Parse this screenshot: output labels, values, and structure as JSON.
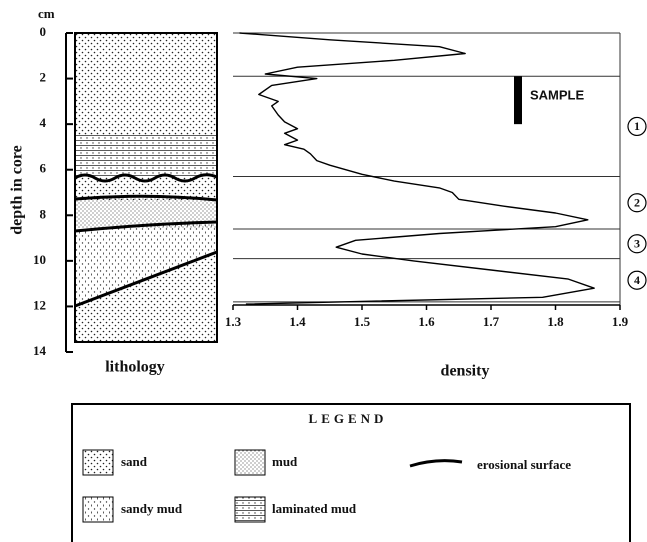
{
  "chart_data": {
    "type": "line",
    "ylabel": "depth in core",
    "yunit": "cm",
    "xlabel": "density",
    "column_label": "lithology",
    "ylim": [
      0,
      14
    ],
    "yticks": [
      0,
      2,
      4,
      6,
      8,
      10,
      12,
      14
    ],
    "xlim": [
      1.3,
      1.9
    ],
    "xticks": [
      1.3,
      1.4,
      1.5,
      1.6,
      1.7,
      1.8,
      1.9
    ],
    "depth": [
      0,
      0.3,
      0.6,
      0.9,
      1.2,
      1.5,
      1.8,
      2.0,
      2.3,
      2.7,
      3.0,
      3.2,
      3.6,
      3.9,
      4.2,
      4.4,
      4.7,
      4.9,
      5.1,
      5.3,
      5.6,
      5.8,
      6.2,
      6.5,
      6.8,
      7.0,
      7.3,
      7.6,
      7.9,
      8.2,
      8.5,
      8.8,
      9.1,
      9.4,
      9.7,
      10.0,
      10.4,
      10.8,
      11.2,
      11.6,
      11.9
    ],
    "values": [
      1.31,
      1.45,
      1.62,
      1.66,
      1.55,
      1.4,
      1.35,
      1.43,
      1.36,
      1.34,
      1.37,
      1.36,
      1.37,
      1.38,
      1.4,
      1.38,
      1.4,
      1.38,
      1.41,
      1.42,
      1.43,
      1.45,
      1.5,
      1.55,
      1.62,
      1.64,
      1.65,
      1.72,
      1.8,
      1.85,
      1.8,
      1.62,
      1.49,
      1.46,
      1.5,
      1.58,
      1.7,
      1.82,
      1.86,
      1.78,
      1.32
    ],
    "color": "#000000",
    "unit_boundaries": [
      0,
      1.9,
      6.3,
      8.6,
      9.9,
      11.8
    ],
    "units": [
      "1",
      "2",
      "3",
      "4"
    ],
    "sample": {
      "label": "SAMPLE",
      "top": 1.9,
      "bottom": 4.0
    },
    "legend": {
      "title": "LEGEND",
      "items": [
        "sand",
        "mud",
        "erosional surface",
        "sandy mud",
        "laminated mud"
      ]
    }
  }
}
